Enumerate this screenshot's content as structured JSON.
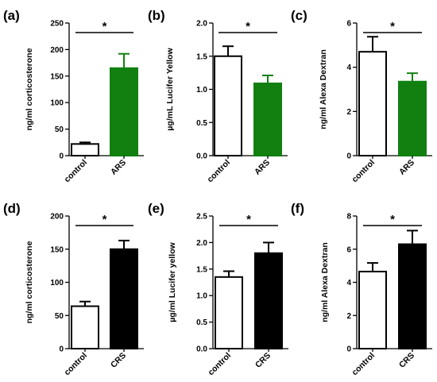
{
  "chart_data": [
    {
      "panel": "(a)",
      "type": "bar",
      "ylabel": "ng/ml corticosterone",
      "ylim": [
        0,
        250
      ],
      "yticks": [
        0,
        50,
        100,
        150,
        200,
        250
      ],
      "categories": [
        "control",
        "ARS"
      ],
      "values": [
        22,
        165
      ],
      "errors": [
        3,
        27
      ],
      "colors": [
        "#ffffff",
        "#118011"
      ],
      "significance": "*"
    },
    {
      "panel": "(b)",
      "type": "bar",
      "ylabel": "µg/mL Lucifer Yellow",
      "ylim": [
        0,
        2.0
      ],
      "yticks": [
        "0.0",
        "0.5",
        "1.0",
        "1.5",
        "2.0"
      ],
      "categories": [
        "control",
        "ARS"
      ],
      "values": [
        1.5,
        1.09
      ],
      "errors": [
        0.15,
        0.12
      ],
      "colors": [
        "#ffffff",
        "#118011"
      ],
      "significance": "*"
    },
    {
      "panel": "(c)",
      "type": "bar",
      "ylabel": "ng/ml  Alexa Dextran",
      "ylim": [
        0,
        6
      ],
      "yticks": [
        0,
        2,
        4,
        6
      ],
      "categories": [
        "control",
        "ARS"
      ],
      "values": [
        4.7,
        3.35
      ],
      "errors": [
        0.68,
        0.38
      ],
      "colors": [
        "#ffffff",
        "#118011"
      ],
      "significance": "*"
    },
    {
      "panel": "(d)",
      "type": "bar",
      "ylabel": "ng/ml corticosterone",
      "ylim": [
        0,
        200
      ],
      "yticks": [
        0,
        50,
        100,
        150,
        200
      ],
      "categories": [
        "control",
        "CRS"
      ],
      "values": [
        64,
        150
      ],
      "errors": [
        7,
        13
      ],
      "colors": [
        "#ffffff",
        "#000000"
      ],
      "significance": "*"
    },
    {
      "panel": "(e)",
      "type": "bar",
      "ylabel": "µg/ml Lucifer yellow",
      "ylim": [
        0,
        2.5
      ],
      "yticks": [
        "0.0",
        "0.5",
        "1.0",
        "1.5",
        "2.0",
        "2.5"
      ],
      "categories": [
        "control",
        "CRS"
      ],
      "values": [
        1.35,
        1.8
      ],
      "errors": [
        0.11,
        0.2
      ],
      "colors": [
        "#ffffff",
        "#000000"
      ],
      "significance": "*"
    },
    {
      "panel": "(f)",
      "type": "bar",
      "ylabel": "ng/ml Alexa Dextran",
      "ylim": [
        0,
        8
      ],
      "yticks": [
        0,
        2,
        4,
        6,
        8
      ],
      "categories": [
        "control",
        "CRS"
      ],
      "values": [
        4.65,
        6.3
      ],
      "errors": [
        0.52,
        0.82
      ],
      "colors": [
        "#ffffff",
        "#000000"
      ],
      "significance": "*"
    }
  ]
}
